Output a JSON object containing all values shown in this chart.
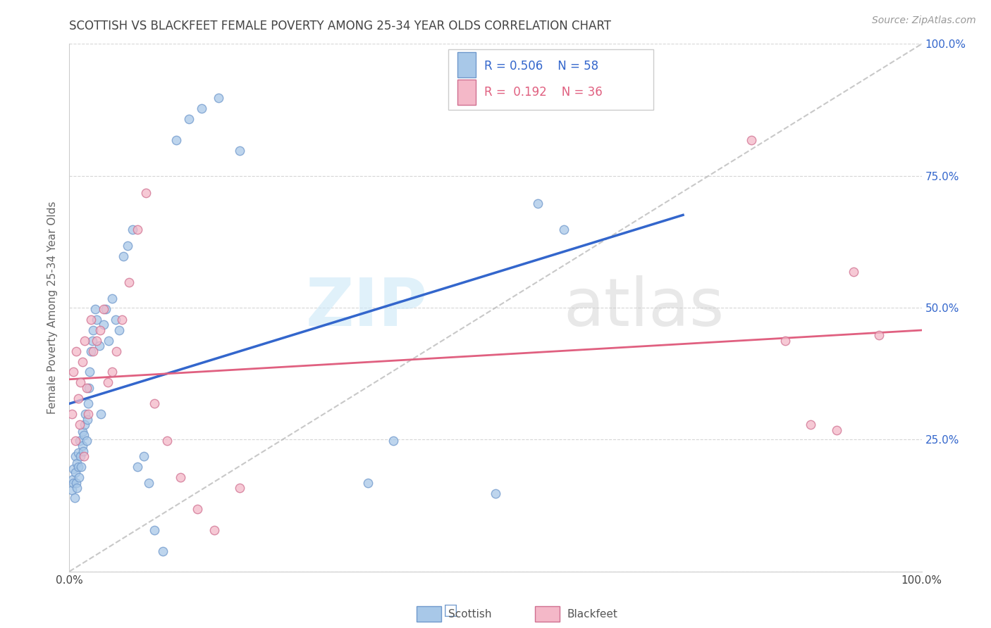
{
  "title": "SCOTTISH VS BLACKFEET FEMALE POVERTY AMONG 25-34 YEAR OLDS CORRELATION CHART",
  "source": "Source: ZipAtlas.com",
  "ylabel": "Female Poverty Among 25-34 Year Olds",
  "xlim": [
    0,
    1
  ],
  "ylim": [
    0,
    1
  ],
  "x_ticks": [
    0.0,
    0.2,
    0.4,
    0.6,
    0.8,
    1.0
  ],
  "x_tick_labels": [
    "0.0%",
    "",
    "",
    "",
    "",
    "100.0%"
  ],
  "y_ticks": [
    0.0,
    0.25,
    0.5,
    0.75,
    1.0
  ],
  "y_tick_labels_right": [
    "",
    "25.0%",
    "50.0%",
    "75.0%",
    "100.0%"
  ],
  "watermark": "ZIPatlas",
  "scottish_color": "#a8c8e8",
  "blackfeet_color": "#f4b8c8",
  "scottish_edge": "#7099cc",
  "blackfeet_edge": "#d07090",
  "trend_scottish": "#3366cc",
  "trend_blackfeet": "#e06080",
  "diag_color": "#bbbbbb",
  "background_color": "#ffffff",
  "grid_color": "#cccccc",
  "title_color": "#444444",
  "label_color": "#666666",
  "right_tick_color": "#3366cc",
  "scottish_x": [
    0.003,
    0.004,
    0.005,
    0.005,
    0.006,
    0.007,
    0.007,
    0.008,
    0.009,
    0.009,
    0.01,
    0.01,
    0.011,
    0.012,
    0.013,
    0.014,
    0.015,
    0.015,
    0.016,
    0.017,
    0.018,
    0.019,
    0.02,
    0.021,
    0.022,
    0.023,
    0.024,
    0.025,
    0.027,
    0.028,
    0.03,
    0.032,
    0.035,
    0.037,
    0.04,
    0.043,
    0.046,
    0.05,
    0.054,
    0.058,
    0.063,
    0.068,
    0.074,
    0.08,
    0.087,
    0.093,
    0.1,
    0.11,
    0.125,
    0.14,
    0.155,
    0.175,
    0.2,
    0.35,
    0.38,
    0.5,
    0.55,
    0.58
  ],
  "scottish_y": [
    0.155,
    0.175,
    0.168,
    0.195,
    0.14,
    0.218,
    0.188,
    0.168,
    0.205,
    0.158,
    0.198,
    0.225,
    0.178,
    0.248,
    0.218,
    0.198,
    0.238,
    0.265,
    0.228,
    0.258,
    0.278,
    0.298,
    0.248,
    0.288,
    0.318,
    0.348,
    0.378,
    0.418,
    0.438,
    0.458,
    0.498,
    0.478,
    0.428,
    0.298,
    0.468,
    0.498,
    0.438,
    0.518,
    0.478,
    0.458,
    0.598,
    0.618,
    0.648,
    0.198,
    0.218,
    0.168,
    0.078,
    0.038,
    0.818,
    0.858,
    0.878,
    0.898,
    0.798,
    0.168,
    0.248,
    0.148,
    0.698,
    0.648
  ],
  "blackfeet_x": [
    0.003,
    0.005,
    0.007,
    0.008,
    0.01,
    0.012,
    0.013,
    0.015,
    0.017,
    0.018,
    0.02,
    0.022,
    0.025,
    0.028,
    0.032,
    0.036,
    0.04,
    0.045,
    0.05,
    0.055,
    0.062,
    0.07,
    0.08,
    0.09,
    0.1,
    0.115,
    0.13,
    0.15,
    0.17,
    0.2,
    0.8,
    0.84,
    0.87,
    0.9,
    0.92,
    0.95
  ],
  "blackfeet_y": [
    0.298,
    0.378,
    0.248,
    0.418,
    0.328,
    0.278,
    0.358,
    0.398,
    0.218,
    0.438,
    0.348,
    0.298,
    0.478,
    0.418,
    0.438,
    0.458,
    0.498,
    0.358,
    0.378,
    0.418,
    0.478,
    0.548,
    0.648,
    0.718,
    0.318,
    0.248,
    0.178,
    0.118,
    0.078,
    0.158,
    0.818,
    0.438,
    0.278,
    0.268,
    0.568,
    0.448
  ]
}
